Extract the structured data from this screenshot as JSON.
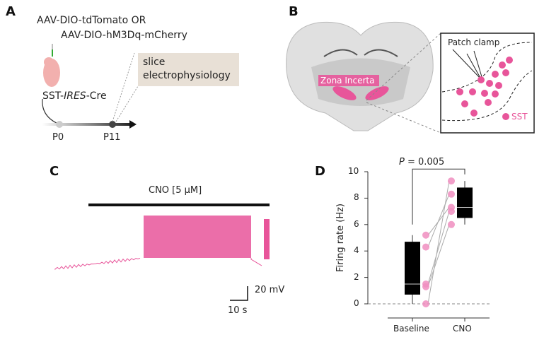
{
  "panels": {
    "a": "A",
    "b": "B",
    "c": "C",
    "d": "D"
  },
  "panel_a": {
    "virus1": "AAV-DIO-tdTomato OR",
    "virus2": "AAV-DIO-hM3Dq-mCherry",
    "mouse_pre": "SST-",
    "mouse_ital": "IRES",
    "mouse_post": "-Cre",
    "box": [
      "slice",
      "electrophysiology"
    ],
    "t0": "P0",
    "t1": "P11"
  },
  "panel_b": {
    "region": "Zona Incerta",
    "patch": "Patch clamp",
    "legend": "SST",
    "pink": "#e8559a"
  },
  "panel_c": {
    "drug": "CNO [5 µM]",
    "scale_v": "20 mV",
    "scale_t": "10 s",
    "trace_color": "#e8559a"
  },
  "chart_data": {
    "type": "box",
    "categories": [
      "Baseline",
      "CNO"
    ],
    "ylabel": "Firing rate (Hz)",
    "ylim": [
      0,
      10
    ],
    "yticks": [
      0,
      2,
      4,
      6,
      8,
      10
    ],
    "annotation": {
      "label_ital": "P",
      "label_rest": " = 0.005"
    },
    "boxes": [
      {
        "min": 0,
        "q1": 0.7,
        "median": 1.5,
        "q3": 4.7,
        "max": 5.2
      },
      {
        "min": 6.0,
        "q1": 6.5,
        "median": 7.3,
        "q3": 8.8,
        "max": 9.3
      }
    ],
    "points": {
      "Baseline": [
        5.2,
        4.3,
        1.5,
        1.3,
        0
      ],
      "CNO": [
        7.3,
        8.3,
        7.0,
        6.0,
        9.3
      ]
    },
    "point_color": "#f08ec0"
  }
}
